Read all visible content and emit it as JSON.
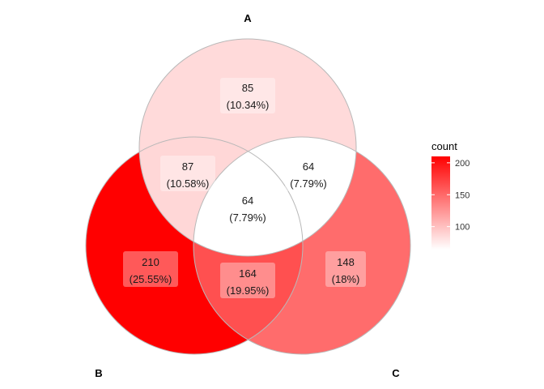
{
  "chart_data": {
    "type": "venn",
    "sets": [
      "A",
      "B",
      "C"
    ],
    "regions": [
      {
        "id": "A_only",
        "sets": [
          "A"
        ],
        "count": "85",
        "percent": "(10.34%)"
      },
      {
        "id": "B_only",
        "sets": [
          "B"
        ],
        "count": "210",
        "percent": "(25.55%)"
      },
      {
        "id": "C_only",
        "sets": [
          "C"
        ],
        "count": "148",
        "percent": "(18%)"
      },
      {
        "id": "AB",
        "sets": [
          "A",
          "B"
        ],
        "count": "87",
        "percent": "(10.58%)"
      },
      {
        "id": "AC",
        "sets": [
          "A",
          "C"
        ],
        "count": "64",
        "percent": "(7.79%)"
      },
      {
        "id": "BC",
        "sets": [
          "B",
          "C"
        ],
        "count": "164",
        "percent": "(19.95%)"
      },
      {
        "id": "ABC",
        "sets": [
          "A",
          "B",
          "C"
        ],
        "count": "64",
        "percent": "(7.79%)"
      }
    ],
    "legend": {
      "title": "count",
      "ticks": [
        "100",
        "150",
        "200"
      ],
      "range": [
        64,
        210
      ],
      "low_color": "#ffffff",
      "high_color": "#ff0000"
    }
  }
}
